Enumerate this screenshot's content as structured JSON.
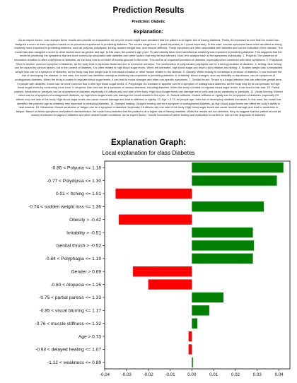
{
  "header": {
    "title": "Prediction Results",
    "prediction_line": "Prediction: Diabetic",
    "explanation_label": "Explanation:",
    "explanation_text": "As an expert doctor, I can analyze these results and provide an explanation for why the model might have predicted that the patient is at higher risk of having diabetes. Firstly, it's important to note that the model has assigned a score to each symptom based on its perceived importance in predicting diabetes. The scores range from -1 (least important) to 1 (most important). In this case, several symptoms have been identified as being relatively more important in predicting diabetes, such as polyuria, polydipsia, itching, sudden weight loss, and muscle stiffness. These symptoms are often associated with diabetes and can be indicative of the disease. The model has also assigned a score to other factors such as gender and age. In this case, the patient's age (over 73) and obesity have been identified as relatively less important in predicting diabetes. This suggests that the model is prioritizing the symptoms that are more commonly associated with diabetes over other factors that may be less relevant. Now, let's analyze each of the symptoms individually: 1. Polyuria: The presence of excessive urination is often a symptom of diabetes, as the body tries to rid itself of excess glucose in the urine. This can be an important predictor of diabetes, especially when combined with other symptoms. 2. Polydipsia: Thirst is another common symptom of diabetes, as the body tries to replenish fluids lost due to excessive urination. The combination of polyuria and polydipsia can be a strong predictor of diabetes. 3. Itching: Skin itching can be caused by various factors, but in the context of diabetes, it is often related to high blood sugar levels. When left untreated, high blood sugar can lead to skin irritation and itching. 4. Sudden weight loss: Unexplained weight loss can be a symptom of diabetes, as the body may lose weight due to increased urination or other factors related to the disease. 5. Obesity: While obesity is not always a predictor of diabetes, it can increase the risk of developing the disease. In this case, the model has identified obesity as relatively less important in predicting diabetes. 6. Irritability: Mood changes, such as irritability or depression, can be symptoms of undiagnosed diabetes. When the body is unable to regulate blood sugar levels, it can lead to mood changes and other non-specific symptoms. 7. Genital thrush: Thrush is a fungal infection that can affect the genital area. In people with diabetes, thrush can be more common due to the high blood sugar levels. 8. Polyphagia: An increase in appetite can be a symptom of undiagnosed diabetes, as the body may try to compensate for high blood sugar levels by consuming more food. 9. Alopecia: Hair loss can be a symptom of various diseases, including diabetes. When the body is unable to regulate blood sugar levels, it can lead to hair loss. 10. Partial paresis: Weakness or paralysis can be a symptom of diabetes, especially if it affects only one side of the body. High blood sugar levels can damage nerve cells and cause weakness or paralysis. 11. Visual blurring: Blurred vision can be a symptom of undiagnosed diabetes, as high blood sugar levels can damage the blood vessels in the eyes. 12. Muscle stiffness: Muscle stiffness or rigidity can be a symptom of diabetes, especially if it affects only one side of the body. High blood sugar levels can cause muscle damage and lead to stiffness or rigidity. 13. Age > 0.73: As people age, their risk of developing diabetes increases. In this case, the model has identified the patient's age as relatively less important in predicting diabetes. 14. Delayed healing: Delayed healing can be a symptom of undiagnosed diabetes, as high blood sugar levels can affect the body's ability to heal wounds. 15. Weakness: Muscle weakness or fatigue can be a symptom of diabetes, especially if it affects only one side of the body. High blood sugar levels can cause muscle damage and lead to weakness or fatigue. Based on these symptoms and patient characteristics, the model has predicted that the patient is at a higher risk of having diabetes. While the results are not definitive, they do suggest that the patient should be closely monitored for signs of diabetes and other related health conditions. As an expert doctor, I would recommend further testing and evaluation to confirm or rule out the diagnosis of diabetes.",
    "graph_label": "Explanation Graph:"
  },
  "chart_data": {
    "type": "bar",
    "orientation": "horizontal",
    "title": "Local explanation for class Diabetes",
    "categories": [
      "-0.85 < Polyuria <= 1.18",
      "-0.77 < Polydipsia <= 1.30",
      "0.01 < Itching <= 1.01",
      "-0.74 < sudden weight loss <= 1.36",
      "Obesity > -0.42",
      "Irritability > -0.51",
      "Genital thrush > -0.52",
      "-0.84 < Polyphagia <= 1.19",
      "Gender > 0.69",
      "-0.80 < Alopecia <= 1.25",
      "-0.75 < partial paresis <= 1.33",
      "-0.85 < visual blurring <= 1.17",
      "-0.76 < muscle stiffness <= 1.32",
      "Age > 0.73",
      "-0.93 < delayed healing <= 1.07",
      "-1.12 < weakness <= 0.89"
    ],
    "values": [
      0.042,
      0.039,
      -0.035,
      0.033,
      -0.0335,
      0.028,
      0.0285,
      0.028,
      -0.027,
      -0.02,
      0.0145,
      0.008,
      0.0025,
      -0.0015,
      -0.0015,
      0.0005
    ],
    "xlim": [
      -0.04,
      0.045
    ],
    "xticks": [
      -0.04,
      -0.03,
      -0.02,
      -0.01,
      0.0,
      0.01,
      0.02,
      0.03,
      0.04
    ],
    "xtick_labels": [
      "-0.04",
      "-0.03",
      "-0.02",
      "-0.01",
      "0.00",
      "0.01",
      "0.02",
      "0.03",
      "0.04"
    ],
    "colors": {
      "positive": "#008000",
      "negative": "#ff0000"
    },
    "grid": false,
    "legend": "none"
  }
}
